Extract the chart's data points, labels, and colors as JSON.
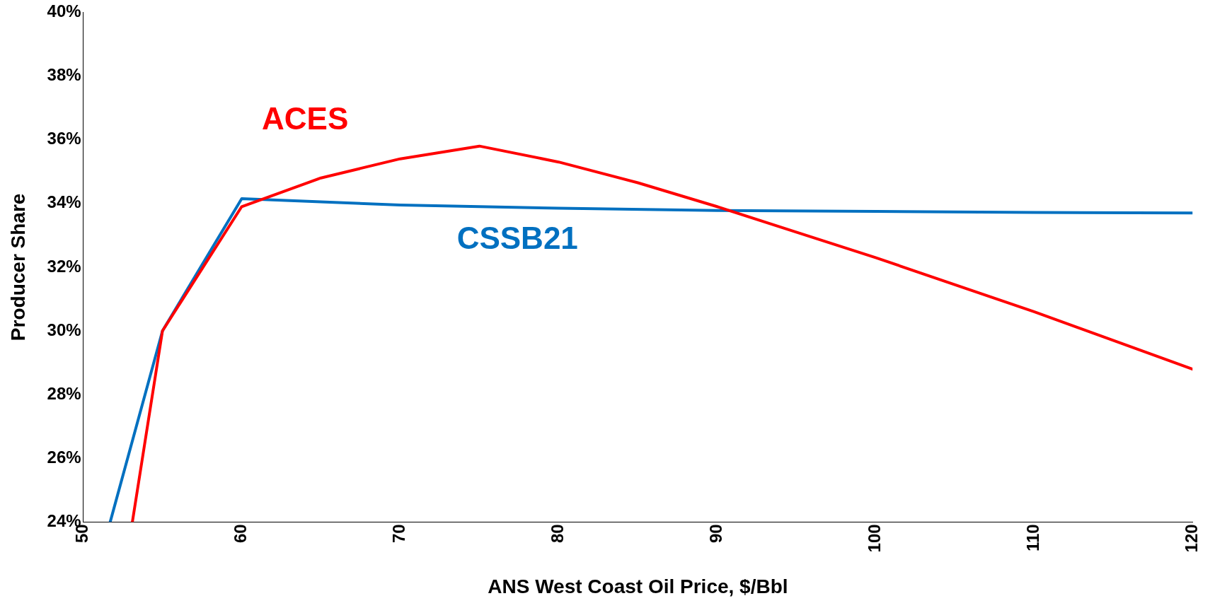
{
  "chart_data": {
    "type": "line",
    "xlabel": "ANS West Coast Oil Price, $/Bbl",
    "ylabel": "Producer Share",
    "series": [
      {
        "name": "ACES",
        "color": "#ff0000",
        "x": [
          53.1,
          55,
          60,
          65,
          70,
          75,
          80,
          85,
          90,
          95,
          100,
          110,
          120
        ],
        "values": [
          24,
          30,
          33.9,
          34.8,
          35.4,
          35.8,
          35.3,
          34.65,
          33.9,
          33.1,
          32.3,
          30.6,
          28.8
        ]
      },
      {
        "name": "CSSB21",
        "color": "#0070c0",
        "x": [
          51.7,
          55,
          60,
          65,
          70,
          75,
          80,
          90,
          100,
          110,
          120
        ],
        "values": [
          24,
          30,
          34.15,
          34.05,
          33.95,
          33.9,
          33.85,
          33.78,
          33.75,
          33.72,
          33.7
        ]
      }
    ],
    "xlim": [
      50,
      120
    ],
    "xticks": [
      50,
      60,
      70,
      80,
      90,
      100,
      110,
      120
    ],
    "ylim": [
      24,
      40
    ],
    "yticks": [
      {
        "value": 24,
        "label": "24%"
      },
      {
        "value": 26,
        "label": "26%"
      },
      {
        "value": 28,
        "label": "28%"
      },
      {
        "value": 30,
        "label": "30%"
      },
      {
        "value": 32,
        "label": "32%"
      },
      {
        "value": 34,
        "label": "34%"
      },
      {
        "value": 36,
        "label": "36%"
      },
      {
        "value": 38,
        "label": "38%"
      },
      {
        "value": 40,
        "label": "40%"
      }
    ],
    "grid": false,
    "legend": false,
    "marker": "none",
    "line_style": "solid"
  }
}
